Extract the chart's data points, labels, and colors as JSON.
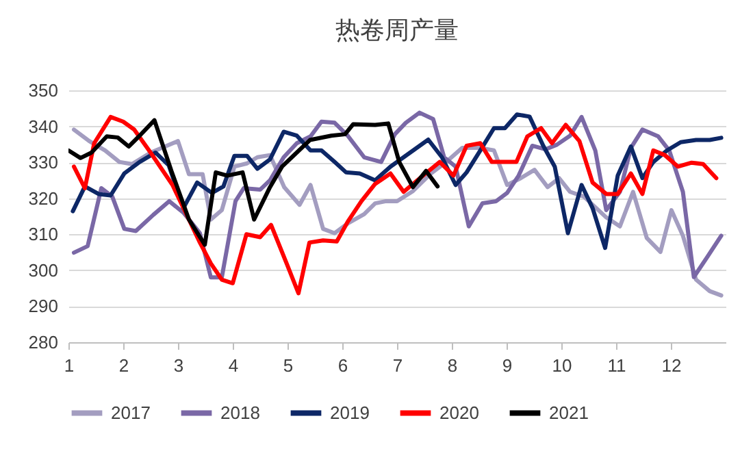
{
  "chart_data": {
    "type": "line",
    "title": "热卷周产量",
    "xlim": [
      1,
      13
    ],
    "xticks": [
      1,
      2,
      3,
      4,
      5,
      6,
      7,
      8,
      9,
      10,
      11,
      12
    ],
    "ylim": [
      280,
      350
    ],
    "yticks": [
      280,
      290,
      300,
      310,
      320,
      330,
      340,
      350
    ],
    "grid": "y",
    "legend": "bottom",
    "series": [
      {
        "name": "2017",
        "color": "#a39dc0",
        "x": [
          1.1,
          1.38,
          1.67,
          1.93,
          2.16,
          2.5,
          3.0,
          3.2,
          3.45,
          3.6,
          3.8,
          4.03,
          4.26,
          4.45,
          4.68,
          4.94,
          5.22,
          5.42,
          5.65,
          5.86,
          6.1,
          6.4,
          6.6,
          6.8,
          7.0,
          7.29,
          7.62,
          7.9,
          8.19,
          8.52,
          8.77,
          9.01,
          9.26,
          9.51,
          9.75,
          9.96,
          10.16,
          10.41,
          10.82,
          11.07,
          11.31,
          11.56,
          11.81,
          12.01,
          12.22,
          12.46,
          12.71,
          12.92
        ],
        "values": [
          339.1,
          335.9,
          333.3,
          330.1,
          329.5,
          332.7,
          335.9,
          326.7,
          326.7,
          314.1,
          316.7,
          328.8,
          329.7,
          331.4,
          332,
          323.1,
          318.2,
          323.7,
          311.5,
          310.3,
          313,
          315.6,
          318.6,
          319.2,
          319.2,
          322,
          326.9,
          330.1,
          334,
          334,
          333.3,
          323.7,
          325.6,
          327.9,
          323.1,
          325.6,
          321.8,
          320.5,
          314.7,
          312.2,
          321.8,
          309,
          305.1,
          316.7,
          309.6,
          297.4,
          294.2,
          293
        ]
      },
      {
        "name": "2018",
        "color": "#7a68a6",
        "x": [
          1.1,
          1.35,
          1.6,
          1.8,
          2.02,
          2.23,
          2.55,
          2.84,
          3.1,
          3.4,
          3.6,
          3.8,
          4.05,
          4.2,
          4.5,
          4.68,
          4.93,
          5.17,
          5.42,
          5.62,
          5.86,
          6.1,
          6.4,
          6.71,
          6.96,
          7.16,
          7.41,
          7.66,
          7.86,
          8.07,
          8.31,
          8.56,
          8.81,
          9.01,
          9.22,
          9.47,
          9.71,
          9.92,
          10.16,
          10.37,
          10.62,
          10.82,
          11.07,
          11.27,
          11.48,
          11.77,
          11.97,
          12.22,
          12.42,
          12.67,
          12.92
        ],
        "values": [
          304.9,
          306.7,
          322.8,
          320.5,
          311.5,
          310.9,
          315.4,
          319.2,
          316,
          310.3,
          298,
          298,
          319.2,
          322.8,
          322.4,
          325,
          331.4,
          335.3,
          337.2,
          341.3,
          341,
          337.4,
          331.4,
          330.1,
          337.8,
          341,
          343.8,
          342,
          331.4,
          328.8,
          312.2,
          318.6,
          319.2,
          321.5,
          326.3,
          334.6,
          333.6,
          334.9,
          337.4,
          342.6,
          333.3,
          316.7,
          321.8,
          334,
          339.1,
          337.2,
          333.3,
          321.8,
          298.1,
          303.8,
          309.6
        ]
      },
      {
        "name": "2019",
        "color": "#0d2766",
        "x": [
          1.08,
          1.3,
          1.55,
          1.77,
          2.02,
          2.3,
          2.59,
          2.83,
          3.1,
          3.35,
          3.62,
          3.83,
          4.03,
          4.26,
          4.45,
          4.68,
          4.93,
          5.17,
          5.42,
          5.62,
          5.86,
          6.07,
          6.32,
          6.6,
          6.88,
          7.12,
          7.57,
          7.82,
          8.07,
          8.27,
          8.52,
          8.77,
          8.97,
          9.19,
          9.42,
          9.67,
          9.88,
          10.12,
          10.37,
          10.57,
          10.8,
          11.03,
          11.27,
          11.48,
          11.68,
          11.93,
          12.18,
          12.46,
          12.71,
          12.92
        ],
        "values": [
          316.4,
          323.3,
          321.2,
          320.8,
          326.9,
          330.1,
          332.7,
          329.2,
          317.3,
          324.4,
          321.5,
          323.3,
          331.8,
          331.8,
          328.2,
          330.8,
          338.5,
          337.4,
          333.3,
          333.3,
          330.1,
          327.2,
          326.9,
          325,
          328.8,
          331.4,
          336.3,
          331.4,
          323.7,
          327.2,
          333.3,
          339.5,
          339.5,
          343.3,
          342.7,
          334.6,
          328.8,
          310.3,
          323.7,
          317.3,
          306.2,
          326.3,
          334.4,
          325.6,
          330.1,
          333.3,
          335.6,
          336.2,
          336.2,
          336.8
        ]
      },
      {
        "name": "2020",
        "color": "#ff0000",
        "x": [
          1.1,
          1.3,
          1.47,
          1.77,
          2.0,
          2.2,
          2.5,
          2.9,
          3.2,
          3.4,
          3.6,
          3.8,
          4.0,
          4.25,
          4.5,
          4.7,
          5.0,
          5.2,
          5.4,
          5.65,
          5.9,
          6.1,
          6.35,
          6.6,
          6.88,
          7.12,
          7.37,
          7.78,
          8.03,
          8.27,
          8.52,
          8.73,
          9.18,
          9.38,
          9.63,
          9.83,
          10.08,
          10.33,
          10.57,
          10.82,
          11.03,
          11.27,
          11.48,
          11.68,
          11.89,
          12.13,
          12.38,
          12.59,
          12.83
        ],
        "values": [
          328.8,
          322.8,
          335.3,
          342.6,
          341.3,
          339.1,
          332.7,
          323.7,
          314.1,
          307.7,
          301.9,
          297.4,
          296.4,
          310,
          309.2,
          312.6,
          301.3,
          293.6,
          307.7,
          308.3,
          308,
          313.5,
          319.2,
          324,
          326.9,
          321.8,
          325,
          330.1,
          326.3,
          334.6,
          335.3,
          330.1,
          330.1,
          337.2,
          339.5,
          335.3,
          340.4,
          335.9,
          324.4,
          321.2,
          321.2,
          326.9,
          321.2,
          333.3,
          332,
          328.8,
          329.9,
          329.5,
          325.6
        ]
      },
      {
        "name": "2021",
        "color": "#000000",
        "x": [
          1.0,
          1.22,
          1.42,
          1.7,
          1.9,
          2.1,
          2.3,
          2.57,
          2.88,
          3.2,
          3.49,
          3.69,
          3.9,
          4.18,
          4.39,
          4.68,
          4.9,
          5.21,
          5.41,
          5.8,
          6.05,
          6.2,
          6.6,
          6.84,
          7.04,
          7.29,
          7.53,
          7.74
        ],
        "values": [
          333.3,
          331.2,
          332.7,
          337.2,
          336.9,
          334.4,
          337.4,
          341.7,
          327.6,
          314.1,
          307.1,
          327.2,
          326.3,
          327.2,
          314.1,
          323.1,
          328.8,
          333.3,
          336.2,
          337.4,
          337.8,
          340.6,
          340.4,
          340.8,
          330.1,
          323.1,
          327.6,
          323.3
        ]
      }
    ]
  }
}
